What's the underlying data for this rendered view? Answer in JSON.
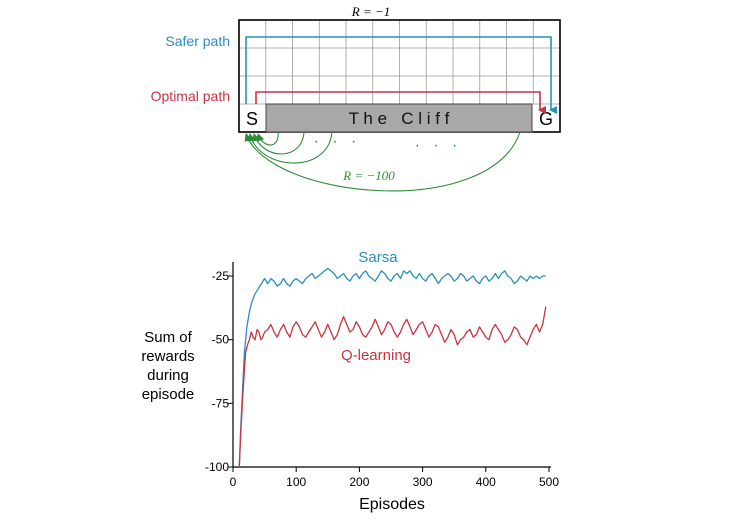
{
  "colors": {
    "safer": "#2a8fc0",
    "optimal": "#cc3340",
    "cliff_return": "#2e8b3a",
    "cliff_fill": "#a8a8a8",
    "grid": "#9a9a9a",
    "sarsa": "#2a8fc0",
    "qlearning": "#cc3340",
    "axis": "#000000"
  },
  "gridworld": {
    "reward_top": "R = −1",
    "reward_cliff": "R = −100",
    "safer_label": "Safer path",
    "optimal_label": "Optimal path",
    "start_label": "S",
    "goal_label": "G",
    "cliff_label": "T h e   C l i f f",
    "dots_left": "·   ·   ·",
    "dots_right": "·   ·   ·"
  },
  "chart_data": {
    "type": "line",
    "xlabel": "Episodes",
    "ylabel_lines": [
      "Sum of",
      "rewards",
      "during",
      "episode"
    ],
    "xlim": [
      0,
      500
    ],
    "ylim": [
      -100,
      -20
    ],
    "x_ticks": [
      0,
      100,
      200,
      300,
      400,
      500
    ],
    "y_ticks": [
      -25,
      -50,
      -75,
      -100
    ],
    "series": [
      {
        "name": "Sarsa",
        "color_key": "sarsa",
        "points": [
          [
            10,
            -100
          ],
          [
            12,
            -86
          ],
          [
            15,
            -70
          ],
          [
            18,
            -55
          ],
          [
            22,
            -45
          ],
          [
            26,
            -39
          ],
          [
            30,
            -35
          ],
          [
            35,
            -32
          ],
          [
            40,
            -30
          ],
          [
            45,
            -28
          ],
          [
            50,
            -26
          ],
          [
            55,
            -28
          ],
          [
            60,
            -26
          ],
          [
            65,
            -27
          ],
          [
            70,
            -29
          ],
          [
            75,
            -28
          ],
          [
            80,
            -26
          ],
          [
            85,
            -28
          ],
          [
            90,
            -29
          ],
          [
            95,
            -27
          ],
          [
            100,
            -26
          ],
          [
            105,
            -27
          ],
          [
            110,
            -28
          ],
          [
            115,
            -26
          ],
          [
            120,
            -25
          ],
          [
            125,
            -24
          ],
          [
            130,
            -26
          ],
          [
            135,
            -25
          ],
          [
            140,
            -24
          ],
          [
            145,
            -23
          ],
          [
            150,
            -22
          ],
          [
            155,
            -23
          ],
          [
            160,
            -24
          ],
          [
            165,
            -26
          ],
          [
            170,
            -25
          ],
          [
            175,
            -24
          ],
          [
            180,
            -26
          ],
          [
            185,
            -27
          ],
          [
            190,
            -25
          ],
          [
            195,
            -24
          ],
          [
            200,
            -26
          ],
          [
            205,
            -24
          ],
          [
            210,
            -23
          ],
          [
            215,
            -25
          ],
          [
            220,
            -26
          ],
          [
            225,
            -27
          ],
          [
            230,
            -25
          ],
          [
            235,
            -23
          ],
          [
            240,
            -24
          ],
          [
            245,
            -26
          ],
          [
            250,
            -27
          ],
          [
            255,
            -25
          ],
          [
            260,
            -24
          ],
          [
            265,
            -26
          ],
          [
            270,
            -23
          ],
          [
            275,
            -24
          ],
          [
            280,
            -23
          ],
          [
            285,
            -25
          ],
          [
            290,
            -26
          ],
          [
            295,
            -24
          ],
          [
            300,
            -26
          ],
          [
            305,
            -27
          ],
          [
            310,
            -25
          ],
          [
            315,
            -24
          ],
          [
            320,
            -26
          ],
          [
            325,
            -28
          ],
          [
            330,
            -26
          ],
          [
            335,
            -25
          ],
          [
            340,
            -24
          ],
          [
            345,
            -25
          ],
          [
            350,
            -27
          ],
          [
            355,
            -26
          ],
          [
            360,
            -24
          ],
          [
            365,
            -25
          ],
          [
            370,
            -27
          ],
          [
            375,
            -26
          ],
          [
            380,
            -25
          ],
          [
            385,
            -27
          ],
          [
            390,
            -28
          ],
          [
            395,
            -26
          ],
          [
            400,
            -25
          ],
          [
            405,
            -27
          ],
          [
            410,
            -26
          ],
          [
            415,
            -24
          ],
          [
            420,
            -26
          ],
          [
            425,
            -24
          ],
          [
            430,
            -23
          ],
          [
            435,
            -25
          ],
          [
            440,
            -26
          ],
          [
            445,
            -28
          ],
          [
            450,
            -27
          ],
          [
            455,
            -25
          ],
          [
            460,
            -26
          ],
          [
            465,
            -27
          ],
          [
            470,
            -25
          ],
          [
            475,
            -26
          ],
          [
            480,
            -25
          ],
          [
            485,
            -26
          ],
          [
            490,
            -25
          ],
          [
            495,
            -25
          ]
        ]
      },
      {
        "name": "Q-learning",
        "color_key": "qlearning",
        "points": [
          [
            10,
            -100
          ],
          [
            12,
            -88
          ],
          [
            15,
            -74
          ],
          [
            18,
            -62
          ],
          [
            20,
            -55
          ],
          [
            23,
            -52
          ],
          [
            26,
            -50
          ],
          [
            29,
            -47
          ],
          [
            32,
            -49
          ],
          [
            35,
            -50
          ],
          [
            38,
            -46
          ],
          [
            41,
            -47
          ],
          [
            44,
            -50
          ],
          [
            47,
            -49
          ],
          [
            50,
            -47
          ],
          [
            55,
            -46
          ],
          [
            60,
            -44
          ],
          [
            65,
            -47
          ],
          [
            70,
            -49
          ],
          [
            75,
            -46
          ],
          [
            80,
            -44
          ],
          [
            85,
            -47
          ],
          [
            90,
            -49
          ],
          [
            95,
            -45
          ],
          [
            100,
            -43
          ],
          [
            105,
            -45
          ],
          [
            110,
            -48
          ],
          [
            115,
            -49
          ],
          [
            120,
            -47
          ],
          [
            125,
            -45
          ],
          [
            130,
            -43
          ],
          [
            135,
            -46
          ],
          [
            140,
            -49
          ],
          [
            145,
            -47
          ],
          [
            150,
            -44
          ],
          [
            155,
            -47
          ],
          [
            160,
            -50
          ],
          [
            165,
            -48
          ],
          [
            170,
            -44
          ],
          [
            175,
            -41
          ],
          [
            180,
            -44
          ],
          [
            185,
            -47
          ],
          [
            190,
            -46
          ],
          [
            195,
            -43
          ],
          [
            200,
            -45
          ],
          [
            205,
            -48
          ],
          [
            210,
            -49
          ],
          [
            215,
            -47
          ],
          [
            220,
            -45
          ],
          [
            225,
            -42
          ],
          [
            230,
            -45
          ],
          [
            235,
            -48
          ],
          [
            240,
            -46
          ],
          [
            245,
            -43
          ],
          [
            250,
            -44
          ],
          [
            255,
            -47
          ],
          [
            260,
            -49
          ],
          [
            265,
            -47
          ],
          [
            270,
            -44
          ],
          [
            275,
            -42
          ],
          [
            280,
            -45
          ],
          [
            285,
            -48
          ],
          [
            290,
            -46
          ],
          [
            295,
            -44
          ],
          [
            300,
            -43
          ],
          [
            305,
            -46
          ],
          [
            310,
            -49
          ],
          [
            315,
            -47
          ],
          [
            320,
            -44
          ],
          [
            325,
            -45
          ],
          [
            330,
            -48
          ],
          [
            335,
            -51
          ],
          [
            340,
            -49
          ],
          [
            345,
            -46
          ],
          [
            350,
            -48
          ],
          [
            355,
            -52
          ],
          [
            360,
            -50
          ],
          [
            365,
            -49
          ],
          [
            370,
            -47
          ],
          [
            375,
            -46
          ],
          [
            380,
            -49
          ],
          [
            385,
            -48
          ],
          [
            390,
            -45
          ],
          [
            395,
            -47
          ],
          [
            400,
            -49
          ],
          [
            405,
            -50
          ],
          [
            410,
            -46
          ],
          [
            415,
            -44
          ],
          [
            420,
            -46
          ],
          [
            425,
            -48
          ],
          [
            430,
            -51
          ],
          [
            435,
            -50
          ],
          [
            440,
            -48
          ],
          [
            445,
            -45
          ],
          [
            450,
            -46
          ],
          [
            455,
            -49
          ],
          [
            460,
            -50
          ],
          [
            465,
            -52
          ],
          [
            470,
            -49
          ],
          [
            475,
            -46
          ],
          [
            480,
            -44
          ],
          [
            485,
            -47
          ],
          [
            490,
            -44
          ],
          [
            495,
            -37
          ]
        ]
      }
    ]
  }
}
